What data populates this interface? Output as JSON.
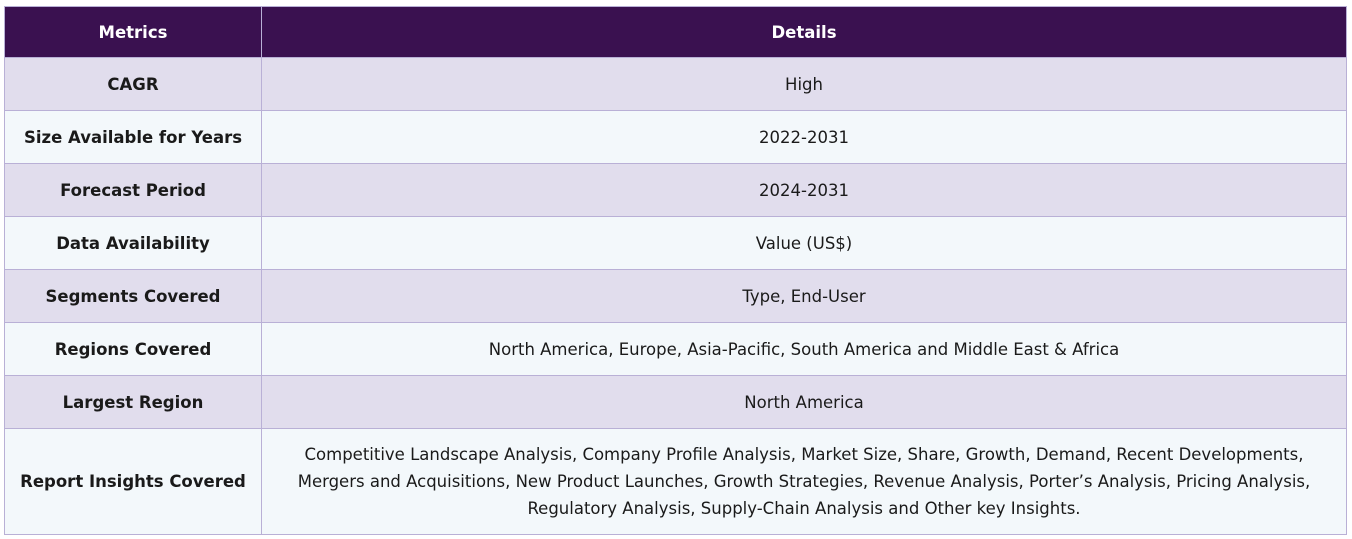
{
  "table": {
    "headers": [
      "Metrics",
      "Details"
    ],
    "rows": [
      {
        "metric": "CAGR",
        "detail": "High"
      },
      {
        "metric": "Size Available for Years",
        "detail": "2022-2031"
      },
      {
        "metric": "Forecast Period",
        "detail": "2024-2031"
      },
      {
        "metric": "Data Availability",
        "detail": "Value (US$)"
      },
      {
        "metric": "Segments Covered",
        "detail": "Type, End-User"
      },
      {
        "metric": "Regions Covered",
        "detail": "North America, Europe, Asia-Pacific, South America and Middle East & Africa"
      },
      {
        "metric": "Largest Region",
        "detail": "North America"
      },
      {
        "metric": "Report Insights Covered",
        "detail": "Competitive Landscape Analysis, Company Profile Analysis, Market Size, Share, Growth, Demand, Recent Developments, Mergers and Acquisitions, New Product Launches, Growth Strategies, Revenue Analysis, Porter’s Analysis, Pricing Analysis, Regulatory Analysis, Supply-Chain Analysis and Other key Insights."
      }
    ]
  },
  "colors": {
    "header_bg": "#3a1150",
    "row_odd_bg": "#e1dded",
    "row_even_bg": "#f3f8fb",
    "border": "#b9b0d6"
  }
}
